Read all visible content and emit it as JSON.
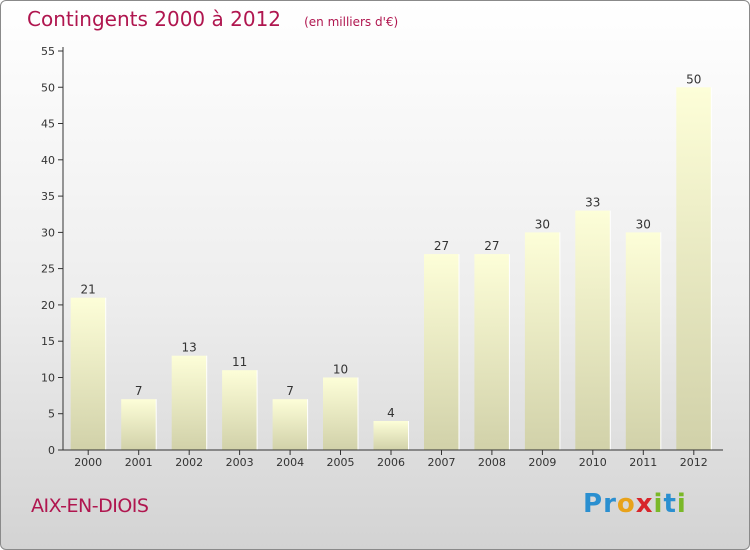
{
  "header": {
    "title": "Contingents 2000 à 2012",
    "unit": "(en milliers d'€)"
  },
  "footer": {
    "city": "AIX-EN-DIOIS"
  },
  "logo": {
    "text": "Proxiti",
    "letters": [
      {
        "ch": "P",
        "color": "#2a8fd0"
      },
      {
        "ch": "r",
        "color": "#2a8fd0"
      },
      {
        "ch": "o",
        "color": "#e8a21a"
      },
      {
        "ch": "x",
        "color": "#d8252a"
      },
      {
        "ch": "i",
        "color": "#7ab828"
      },
      {
        "ch": "t",
        "color": "#2a8fd0"
      },
      {
        "ch": "i",
        "color": "#7ab828"
      }
    ]
  },
  "chart_data": {
    "type": "bar",
    "categories": [
      "2000",
      "2001",
      "2002",
      "2003",
      "2004",
      "2005",
      "2006",
      "2007",
      "2008",
      "2009",
      "2010",
      "2011",
      "2012"
    ],
    "values": [
      21,
      7,
      13,
      11,
      7,
      10,
      4,
      27,
      27,
      30,
      33,
      30,
      50
    ],
    "title": "Contingents 2000 à 2012",
    "ylim": [
      0,
      55
    ],
    "yticks": [
      0,
      5,
      10,
      15,
      20,
      25,
      30,
      35,
      40,
      45,
      50,
      55
    ],
    "grid": false,
    "data_labels": true,
    "colors": {
      "bar_top": "#fdfed8",
      "bar_bottom": "#d1d1a9",
      "axis": "#333333",
      "label": "#333333"
    }
  }
}
